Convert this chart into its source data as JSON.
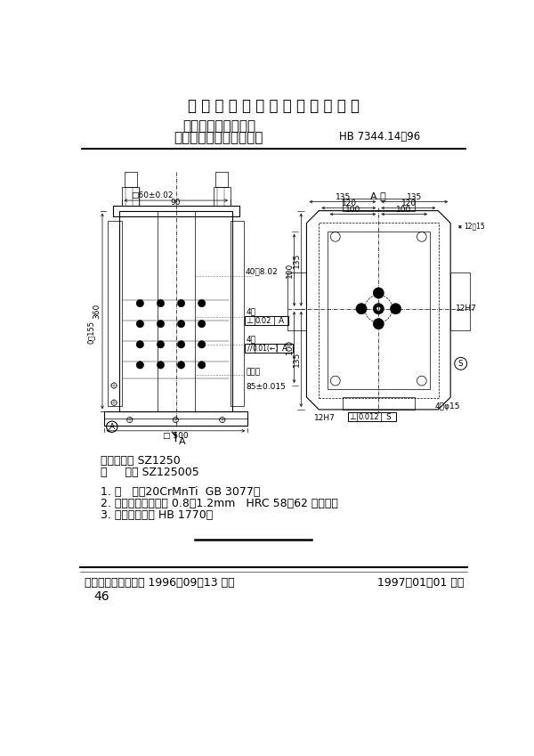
{
  "page_width": 6.0,
  "page_height": 8.49,
  "bg_color": "#ffffff",
  "title_main": "中 华 人 民 共 和 国 航 空 工 业 标 准",
  "title_sub1": "数控机床用夹具元件",
  "title_sub2": "中型四面钳式定位夹紧座",
  "std_number": "HB 7344.14－96",
  "classify_label": "分类代号：",
  "classify_value": "SZ1250",
  "mark_label": "标     记：",
  "mark_value": "SZ125005",
  "note1": "1. 材   料：20CrMnTi  GB 3077。",
  "note2": "2. 热处理：渗碳深度 0.8～1.2mm   HRC 58～62 人工时效",
  "note3": "3. 技术条件：按 HB 1770。",
  "footer_left": "中国航空工业总公司 1996－09－13 发布",
  "footer_right": "1997－01－01 实施",
  "page_number": "46",
  "view_label_top": "A 向",
  "section_label": "A"
}
